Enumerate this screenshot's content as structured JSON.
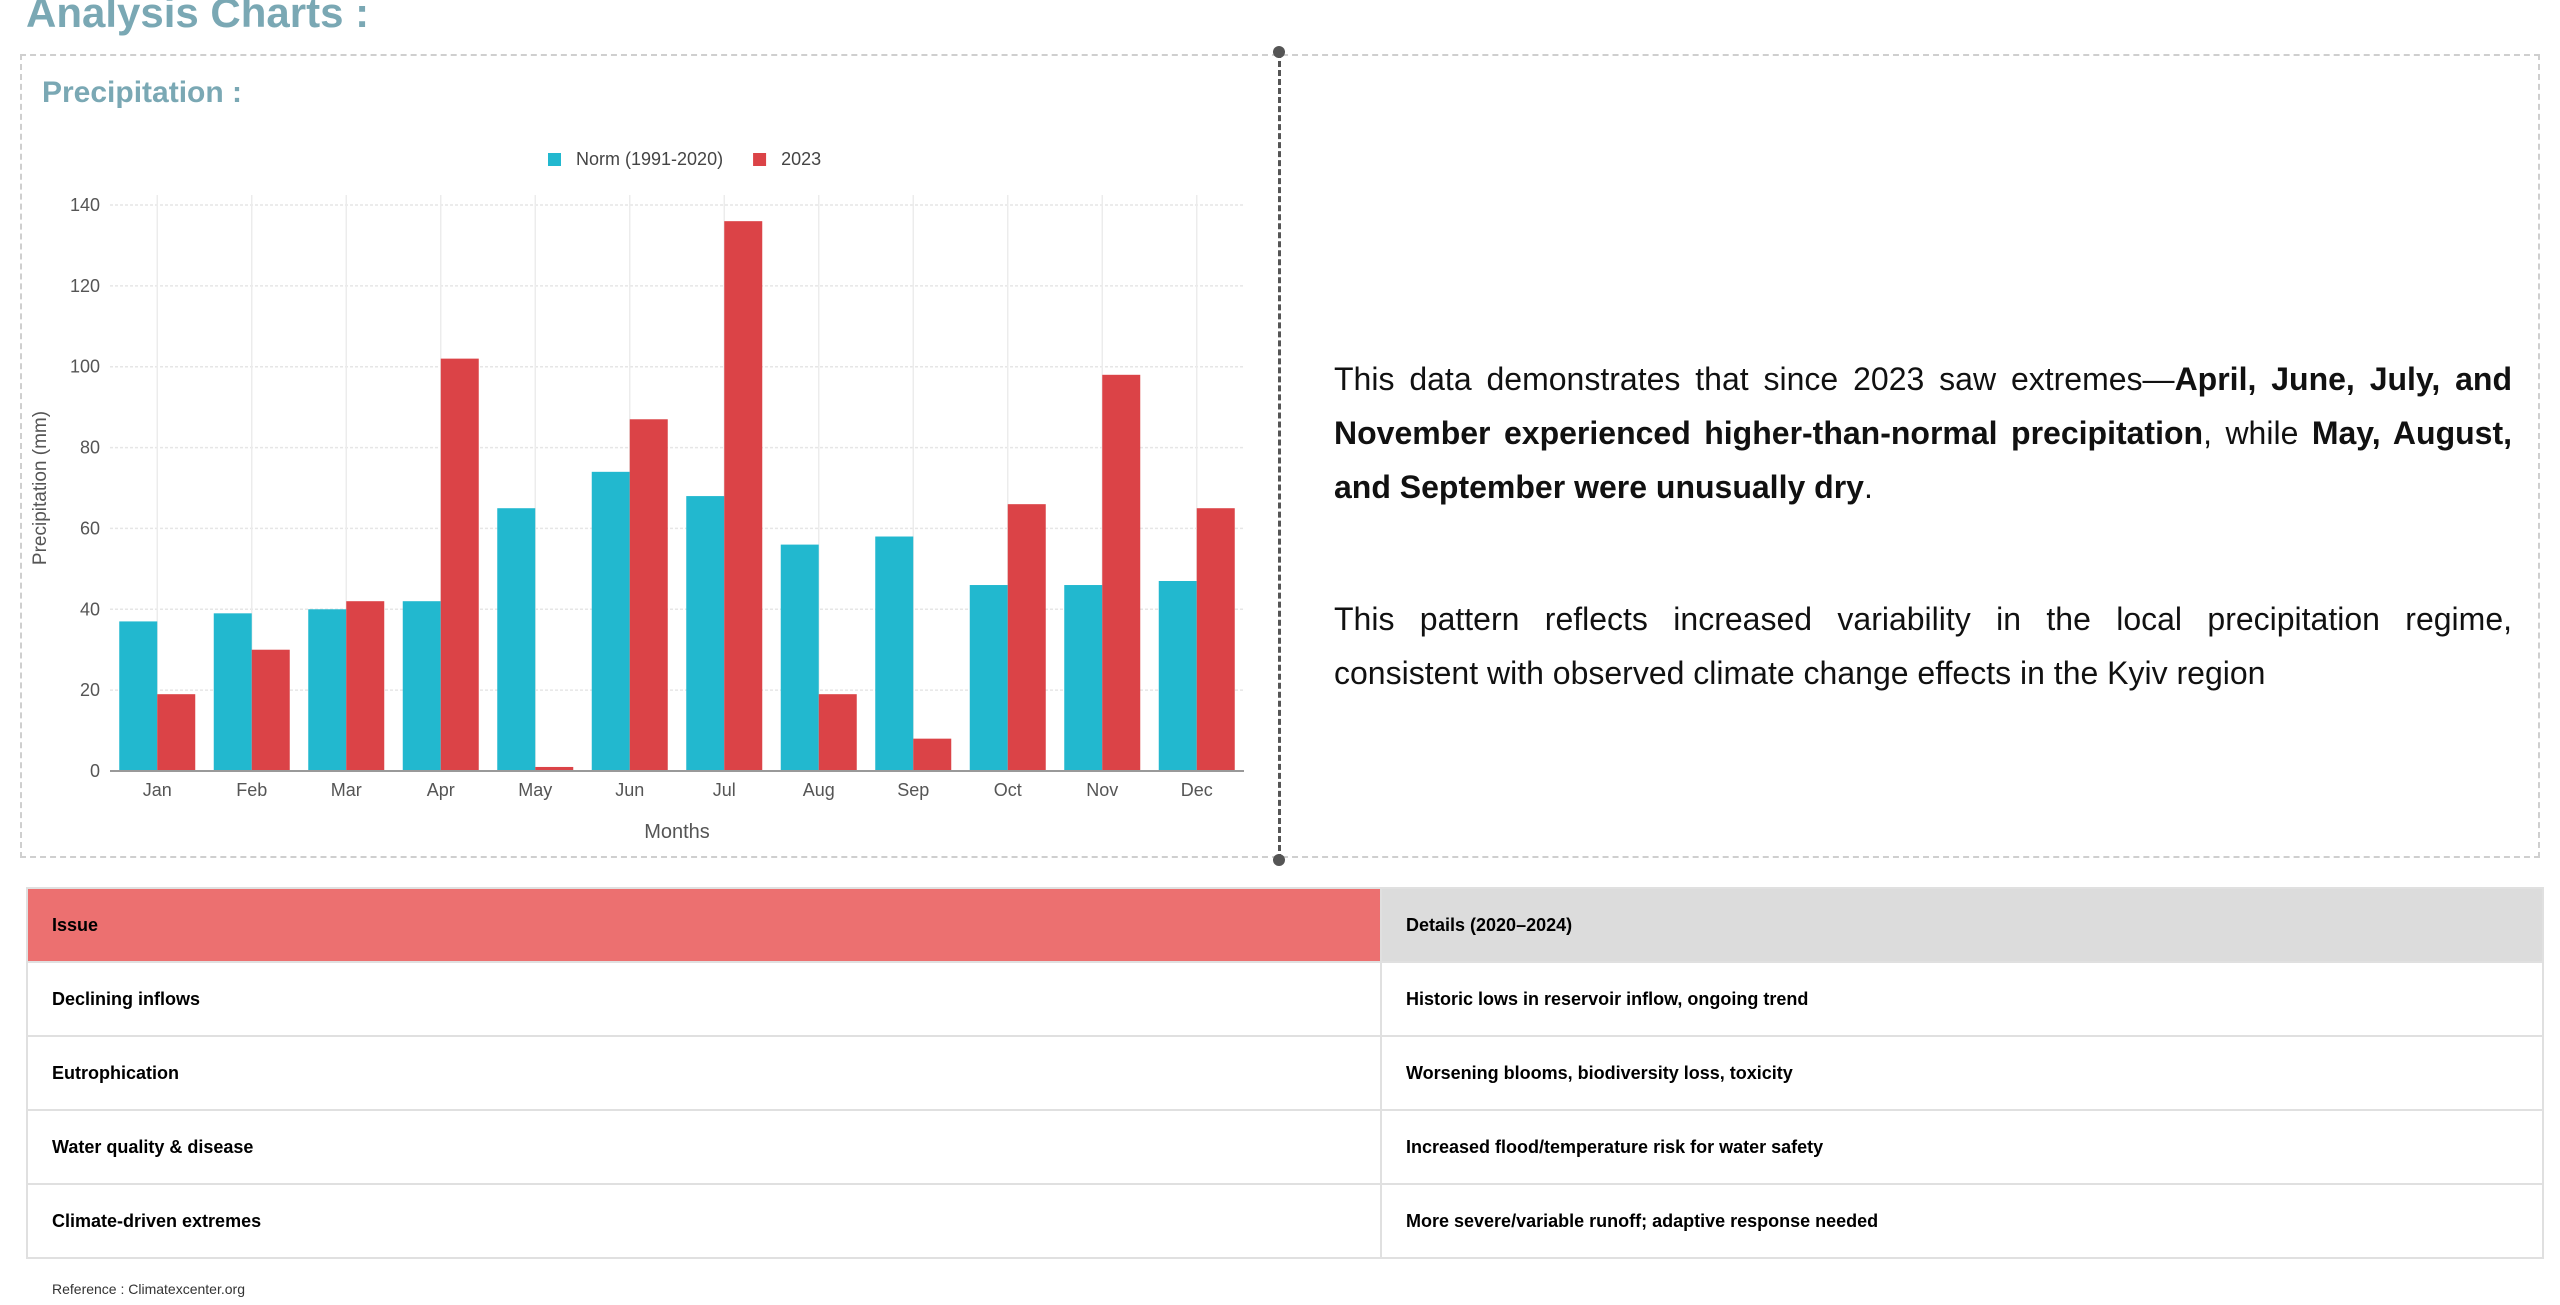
{
  "page": {
    "title": "Analysis Charts :"
  },
  "chart_section": {
    "title": "Precipitation :"
  },
  "chart_data": {
    "type": "bar",
    "title": "",
    "categories": [
      "Jan",
      "Feb",
      "Mar",
      "Apr",
      "May",
      "Jun",
      "Jul",
      "Aug",
      "Sep",
      "Oct",
      "Nov",
      "Dec"
    ],
    "series": [
      {
        "name": "Norm (1991-2020)",
        "color": "#22b8cf",
        "values": [
          37,
          39,
          40,
          42,
          65,
          74,
          68,
          56,
          58,
          46,
          46,
          47
        ]
      },
      {
        "name": "2023",
        "color": "#db4347",
        "values": [
          19,
          30,
          42,
          102,
          1,
          87,
          136,
          19,
          8,
          66,
          98,
          65
        ]
      }
    ],
    "xlabel": "Months",
    "ylabel": "Precipitation (mm)",
    "ylim": [
      0,
      140
    ],
    "yticks": [
      0,
      20,
      40,
      60,
      80,
      100,
      120,
      140
    ],
    "grid": true,
    "legend": "top-center"
  },
  "description": {
    "p1_lead": "This data demonstrates that since 2023 saw extremes—",
    "p1_bold1": "April, June, July, and November experienced higher-than-normal precipitation",
    "p1_mid": ", while ",
    "p1_bold2": "May, August, and September were unusually dry",
    "p1_end": ".",
    "p2": "This pattern reflects increased variability in the local precipitation regime, consistent with observed climate change effects in the Kyiv region"
  },
  "table": {
    "headers": [
      "Issue",
      "Details (2020–2024)"
    ],
    "rows": [
      [
        "Declining inflows",
        "Historic lows in reservoir inflow, ongoing trend"
      ],
      [
        "Eutrophication",
        "Worsening blooms, biodiversity loss, toxicity"
      ],
      [
        "Water quality & disease",
        "Increased flood/temperature risk for water safety"
      ],
      [
        "Climate-driven extremes",
        "More severe/variable runoff; adaptive response needed"
      ]
    ]
  },
  "reference": "Reference : Climatexcenter.org"
}
